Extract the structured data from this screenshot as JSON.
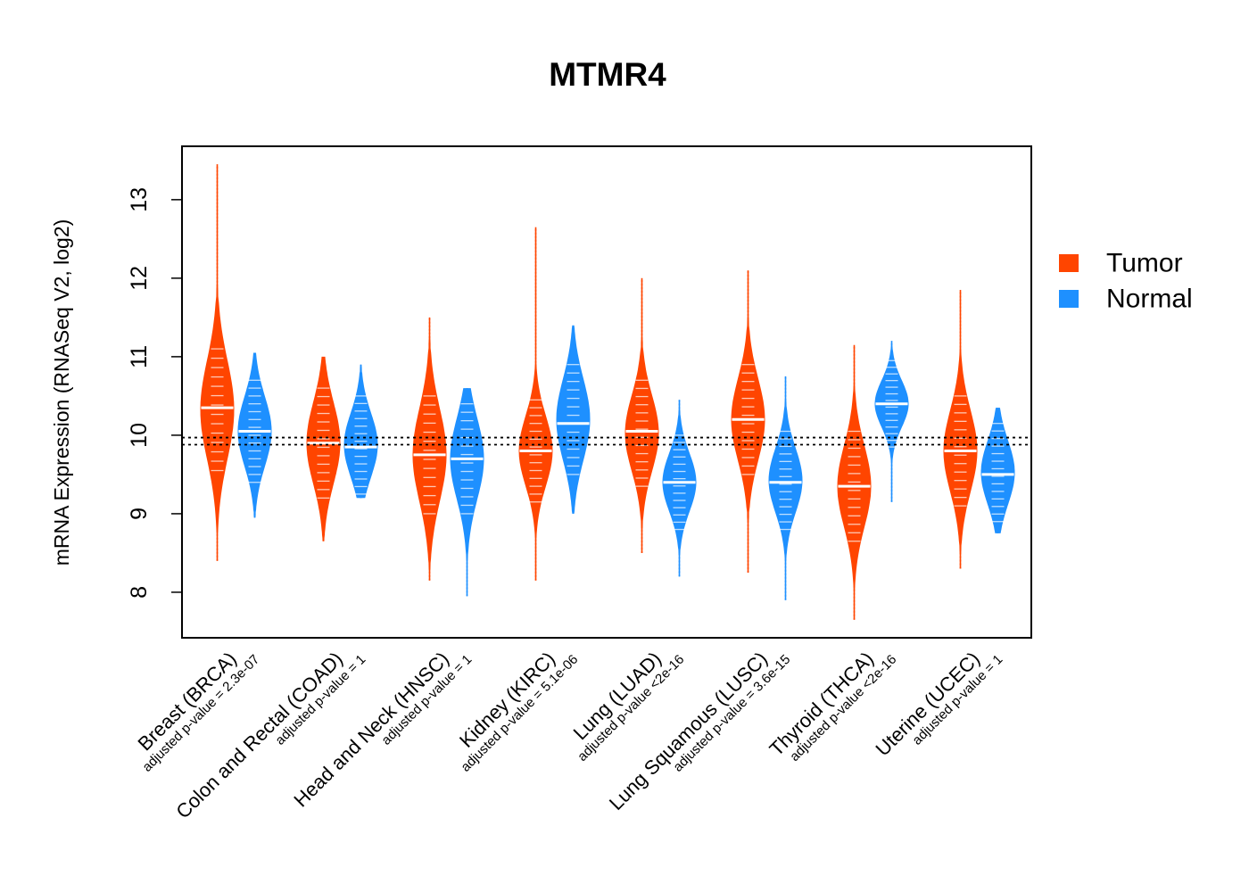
{
  "chart_data": {
    "type": "violin",
    "title": "MTMR4",
    "ylabel": "mRNA Expression (RNASeq V2, log2)",
    "xlabel": "",
    "ylim": [
      7.42,
      13.68
    ],
    "yticks": [
      8,
      9,
      10,
      11,
      12,
      13
    ],
    "reference_lines": [
      9.97,
      9.88
    ],
    "grid": false,
    "legend_position": "right",
    "legend": [
      {
        "name": "Tumor",
        "color": "#FF4500"
      },
      {
        "name": "Normal",
        "color": "#1E90FF"
      }
    ],
    "categories": [
      {
        "label": "Breast (BRCA)",
        "pvalue": "adjusted p-value = 2.3e-07",
        "tumor": {
          "min": 8.4,
          "max": 13.45,
          "median": 10.35,
          "q1": 9.9,
          "q3": 10.75
        },
        "normal": {
          "min": 8.95,
          "max": 11.05,
          "median": 10.05,
          "q1": 9.75,
          "q3": 10.35
        }
      },
      {
        "label": "Colon and Rectal (COAD)",
        "pvalue": "adjusted p-value = 1",
        "tumor": {
          "min": 8.65,
          "max": 11.0,
          "median": 9.9,
          "q1": 9.55,
          "q3": 10.25
        },
        "normal": {
          "min": 9.2,
          "max": 10.9,
          "median": 9.85,
          "q1": 9.6,
          "q3": 10.15
        }
      },
      {
        "label": "Head and Neck (HNSC)",
        "pvalue": "adjusted p-value = 1",
        "tumor": {
          "min": 8.15,
          "max": 11.5,
          "median": 9.75,
          "q1": 9.35,
          "q3": 10.15
        },
        "normal": {
          "min": 7.95,
          "max": 10.6,
          "median": 9.7,
          "q1": 9.35,
          "q3": 10.05
        }
      },
      {
        "label": "Kidney (KIRC)",
        "pvalue": "adjusted p-value = 5.1e-06",
        "tumor": {
          "min": 8.15,
          "max": 12.65,
          "median": 9.8,
          "q1": 9.5,
          "q3": 10.1
        },
        "normal": {
          "min": 9.0,
          "max": 11.4,
          "median": 10.15,
          "q1": 9.85,
          "q3": 10.55
        }
      },
      {
        "label": "Lung (LUAD)",
        "pvalue": "adjusted p-value <2e-16",
        "tumor": {
          "min": 8.5,
          "max": 12.0,
          "median": 10.05,
          "q1": 9.7,
          "q3": 10.35
        },
        "normal": {
          "min": 8.2,
          "max": 10.45,
          "median": 9.4,
          "q1": 9.15,
          "q3": 9.65
        }
      },
      {
        "label": "Lung Squamous (LUSC)",
        "pvalue": "adjusted p-value = 3.6e-15",
        "tumor": {
          "min": 8.25,
          "max": 12.1,
          "median": 10.2,
          "q1": 9.85,
          "q3": 10.55
        },
        "normal": {
          "min": 7.9,
          "max": 10.75,
          "median": 9.4,
          "q1": 9.15,
          "q3": 9.7
        }
      },
      {
        "label": "Thyroid (THCA)",
        "pvalue": "adjusted p-value <2e-16",
        "tumor": {
          "min": 7.65,
          "max": 11.15,
          "median": 9.35,
          "q1": 9.0,
          "q3": 9.7
        },
        "normal": {
          "min": 9.15,
          "max": 11.2,
          "median": 10.4,
          "q1": 10.2,
          "q3": 10.6
        }
      },
      {
        "label": "Uterine (UCEC)",
        "pvalue": "adjusted p-value = 1",
        "tumor": {
          "min": 8.3,
          "max": 11.85,
          "median": 9.8,
          "q1": 9.45,
          "q3": 10.15
        },
        "normal": {
          "min": 8.75,
          "max": 10.35,
          "median": 9.5,
          "q1": 9.25,
          "q3": 9.8
        }
      }
    ]
  }
}
